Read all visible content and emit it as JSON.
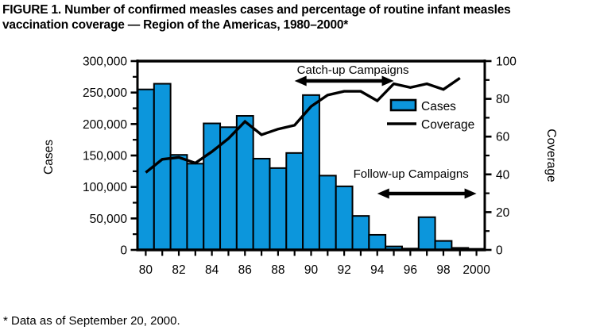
{
  "title": {
    "line1": "FIGURE 1. Number of confirmed measles cases and percentage of routine infant measles",
    "line2": "vaccination coverage — Region of the Americas, 1980–2000*"
  },
  "footnote": "* Data as of September 20, 2000.",
  "chart_data": {
    "type": "bar",
    "title": "FIGURE 1. Number of confirmed measles cases and percentage of routine infant measles vaccination coverage — Region of the Americas, 1980–2000*",
    "categories": [
      1980,
      1981,
      1982,
      1983,
      1984,
      1985,
      1986,
      1987,
      1988,
      1989,
      1990,
      1991,
      1992,
      1993,
      1994,
      1995,
      1996,
      1997,
      1998,
      1999,
      2000
    ],
    "series": [
      {
        "name": "Cases",
        "type": "bar",
        "axis": "left",
        "values": [
          255000,
          264000,
          151000,
          137000,
          201000,
          195000,
          213000,
          145000,
          130000,
          154000,
          246000,
          118000,
          101000,
          54000,
          24000,
          5500,
          2100,
          52000,
          14300,
          3200,
          1700
        ]
      },
      {
        "name": "Coverage",
        "type": "line",
        "axis": "right",
        "values": [
          41,
          48,
          49,
          46,
          52,
          59,
          68,
          61,
          64,
          66,
          76,
          82,
          84,
          84,
          79,
          88,
          86,
          88,
          85,
          91,
          null
        ]
      }
    ],
    "left_axis": {
      "label": "Cases",
      "range": [
        0,
        300000
      ],
      "major_step": 50000,
      "minor_step": 25000,
      "tick_labels": [
        "0",
        "50,000",
        "100,000",
        "150,000",
        "200,000",
        "250,000",
        "300,000"
      ]
    },
    "right_axis": {
      "label": "Coverage",
      "range": [
        0,
        100
      ],
      "major_step": 20,
      "minor_step": 10,
      "tick_labels": [
        "0",
        "20",
        "40",
        "60",
        "80",
        "100"
      ]
    },
    "x_axis": {
      "labeled_years": [
        1980,
        1982,
        1984,
        1986,
        1988,
        1990,
        1992,
        1994,
        1996,
        1998,
        2000
      ],
      "tick_labels": [
        "80",
        "82",
        "84",
        "86",
        "88",
        "90",
        "92",
        "94",
        "96",
        "98",
        "2000"
      ]
    },
    "legend": {
      "entries": [
        {
          "label": "Cases",
          "swatch": "bar"
        },
        {
          "label": "Coverage",
          "swatch": "line"
        }
      ]
    },
    "annotations": [
      {
        "id": "catch-up",
        "text": "Catch-up Campaigns",
        "arrow_from_year": 1989,
        "arrow_to_year": 1995
      },
      {
        "id": "follow-up",
        "text": "Follow-up Campaigns",
        "arrow_from_year": 1994,
        "arrow_to_year": 2000
      }
    ],
    "colors": {
      "bar_fill": "#0c96dc",
      "bar_stroke": "#000000",
      "line": "#000000",
      "axis": "#000000"
    },
    "layout_hints": {
      "grid": false,
      "legend_position": "inside-top-right",
      "bars_touch": true
    }
  }
}
